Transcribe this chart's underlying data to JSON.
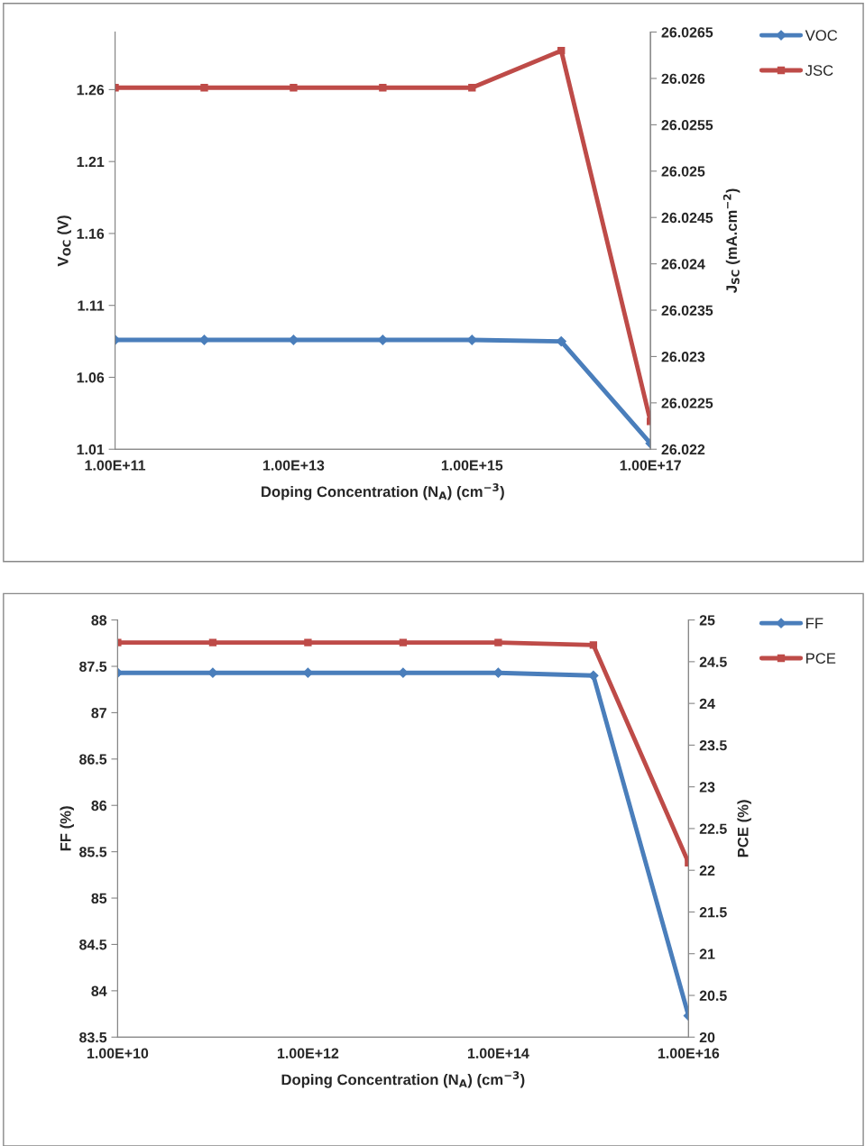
{
  "chart_data": [
    {
      "type": "line",
      "log": "x",
      "x": [
        100000000000.0,
        1000000000000.0,
        10000000000000.0,
        100000000000000.0,
        1000000000000000.0,
        1e+16,
        1e+17
      ],
      "xlim": [
        100000000000.0,
        1e+17
      ],
      "xticks": [
        {
          "value": 100000000000.0,
          "label": "1.00E+11"
        },
        {
          "value": 10000000000000.0,
          "label": "1.00E+13"
        },
        {
          "value": 1000000000000000.0,
          "label": "1.00E+15"
        },
        {
          "value": 1e+17,
          "label": "1.00E+17"
        }
      ],
      "xlabel": "Doping Concentration (N$_{A}$) (cm$^{−3}$)",
      "ylabel": "V$_{OC}$ (V)",
      "y2label": "J$_{SC}$ (mA.cm$^{−2}$)",
      "ylim": [
        1.01,
        1.3
      ],
      "yticks": [
        1.01,
        1.06,
        1.11,
        1.16,
        1.21,
        1.26
      ],
      "y2lim": [
        26.022,
        26.0265
      ],
      "y2ticks": [
        26.022,
        26.0225,
        26.023,
        26.0235,
        26.024,
        26.0245,
        26.025,
        26.0255,
        26.026,
        26.0265
      ],
      "grid": false,
      "legend": "top right",
      "line_style": "solid",
      "series": [
        {
          "name": "VOC",
          "color": "#4a7ebb",
          "marker": "diamond",
          "values": [
            1.086,
            1.086,
            1.086,
            1.086,
            1.086,
            1.085,
            1.014
          ]
        },
        {
          "name": "JSC",
          "color": "#be4b48",
          "marker": "square",
          "axis": "y2",
          "values": [
            26.0259,
            26.0259,
            26.0259,
            26.0259,
            26.0259,
            26.0263,
            26.0223
          ]
        }
      ]
    },
    {
      "type": "line",
      "log": "x",
      "x": [
        10000000000.0,
        100000000000.0,
        1000000000000.0,
        10000000000000.0,
        100000000000000.0,
        1000000000000000.0,
        1e+16
      ],
      "xlim": [
        10000000000.0,
        1e+16
      ],
      "xticks": [
        {
          "value": 10000000000.0,
          "label": "1.00E+10"
        },
        {
          "value": 1000000000000.0,
          "label": "1.00E+12"
        },
        {
          "value": 100000000000000.0,
          "label": "1.00E+14"
        },
        {
          "value": 1e+16,
          "label": "1.00E+16"
        }
      ],
      "xlabel": "Doping Concentration (N$_{A}$) (cm$^{−3}$)",
      "ylabel": "FF (%)",
      "y2label": "PCE (%)",
      "ylim": [
        83.5,
        88
      ],
      "yticks": [
        83.5,
        84,
        84.5,
        85,
        85.5,
        86,
        86.5,
        87,
        87.5,
        88
      ],
      "y2lim": [
        20,
        25
      ],
      "y2ticks": [
        20,
        20.5,
        21,
        21.5,
        22,
        22.5,
        23,
        23.5,
        24,
        24.5,
        25
      ],
      "grid": false,
      "legend": "top right",
      "line_style": "solid",
      "series": [
        {
          "name": "FF",
          "color": "#4a7ebb",
          "marker": "diamond",
          "values": [
            87.43,
            87.43,
            87.43,
            87.43,
            87.43,
            87.4,
            83.73
          ]
        },
        {
          "name": "PCE",
          "color": "#be4b48",
          "marker": "square",
          "axis": "y2",
          "values": [
            24.73,
            24.73,
            24.73,
            24.73,
            24.73,
            24.7,
            22.09
          ]
        }
      ]
    }
  ]
}
